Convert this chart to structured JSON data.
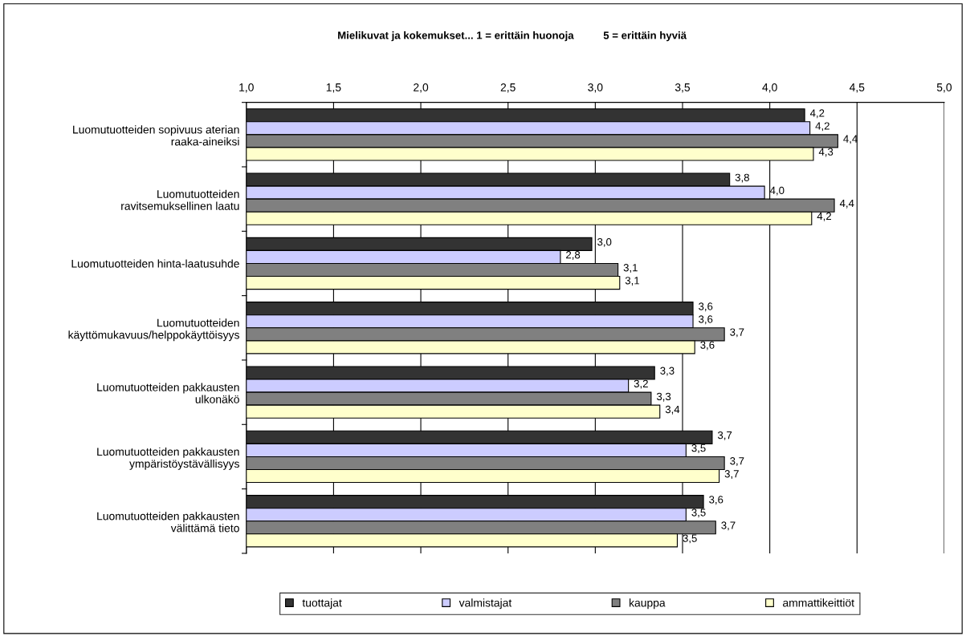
{
  "chart_data": {
    "type": "bar",
    "orientation": "horizontal",
    "title": "Mielikuvat ja kokemukset... 1 = erittäin huonoja          5 = erittäin hyviä",
    "categories": [
      "Luomutuotteiden sopivuus aterian\nraaka-aineiksi",
      "Luomutuotteiden\nravitsemuksellinen laatu",
      "Luomutuotteiden hinta-laatusuhde",
      "Luomutuotteiden\nkäyttömukavuus/helppokäyttöisyys",
      "Luomutuotteiden pakkausten\nulkonäkö",
      "Luomutuotteiden pakkausten\nympäristöystävällisyys",
      "Luomutuotteiden pakkausten\nvälittämä tieto"
    ],
    "series": [
      {
        "name": "tuottajat",
        "color": "#333333",
        "values": [
          4.2,
          3.77,
          2.98,
          3.56,
          3.34,
          3.67,
          3.62
        ],
        "value_labels": [
          "4,2",
          "3,8",
          "3,0",
          "3,6",
          "3,3",
          "3,7",
          "3,6"
        ]
      },
      {
        "name": "valmistajat",
        "color": "#ccccff",
        "values": [
          4.23,
          3.97,
          2.8,
          3.56,
          3.19,
          3.52,
          3.52
        ],
        "value_labels": [
          "4,2",
          "4,0",
          "2,8",
          "3,6",
          "3,2",
          "3,5",
          "3,5"
        ]
      },
      {
        "name": "kauppa",
        "color": "#808080",
        "values": [
          4.39,
          4.37,
          3.13,
          3.74,
          3.32,
          3.74,
          3.69
        ],
        "value_labels": [
          "4,4",
          "4,4",
          "3,1",
          "3,7",
          "3,3",
          "3,7",
          "3,7"
        ]
      },
      {
        "name": "ammattikeittiöt",
        "color": "#ffffcc",
        "values": [
          4.25,
          4.24,
          3.14,
          3.57,
          3.37,
          3.71,
          3.47
        ],
        "value_labels": [
          "4,3",
          "4,2",
          "3,1",
          "3,6",
          "3,4",
          "3,7",
          "3,5"
        ]
      }
    ],
    "xlim": [
      1.0,
      5.0
    ],
    "xticks": [
      {
        "value": 1.0,
        "label": "1,0"
      },
      {
        "value": 1.5,
        "label": "1,5"
      },
      {
        "value": 2.0,
        "label": "2,0"
      },
      {
        "value": 2.5,
        "label": "2,5"
      },
      {
        "value": 3.0,
        "label": "3,0"
      },
      {
        "value": 3.5,
        "label": "3,5"
      },
      {
        "value": 4.0,
        "label": "4,0"
      },
      {
        "value": 4.5,
        "label": "4,5"
      },
      {
        "value": 5.0,
        "label": "5,0"
      }
    ],
    "grid": "x",
    "legend": "bottom"
  }
}
